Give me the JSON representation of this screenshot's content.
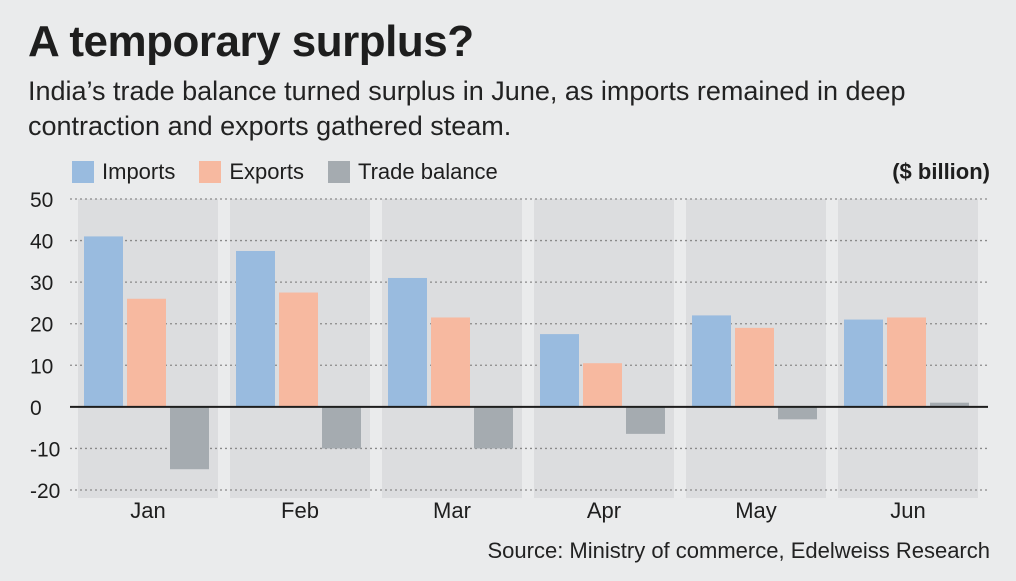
{
  "header": {
    "title": "A temporary surplus?",
    "subtitle": "India’s trade balance turned surplus in June, as imports remained in deep contraction and exports gathered steam."
  },
  "unit_label": "($ billion)",
  "source": "Source: Ministry of commerce, Edelweiss Research",
  "colors": {
    "imports": "#99bbdf",
    "exports": "#f7b9a0",
    "trade_balance": "#a5abb0",
    "panel": "#dcdddf",
    "grid": "#8a8a8a",
    "zero_line": "#1e1e1e"
  },
  "chart_data": {
    "type": "bar",
    "categories": [
      "Jan",
      "Feb",
      "Mar",
      "Apr",
      "May",
      "Jun"
    ],
    "series": [
      {
        "name": "Imports",
        "values": [
          41,
          37.5,
          31,
          17.5,
          22,
          21
        ]
      },
      {
        "name": "Exports",
        "values": [
          26,
          27.5,
          21.5,
          10.5,
          19,
          21.5
        ]
      },
      {
        "name": "Trade balance",
        "values": [
          -15,
          -10,
          -10,
          -6.5,
          -3,
          1
        ]
      }
    ],
    "yticks": [
      50,
      40,
      30,
      20,
      10,
      0,
      -10,
      -20
    ],
    "ylim": [
      -20,
      50
    ],
    "grid": true,
    "legend": "top-left"
  }
}
